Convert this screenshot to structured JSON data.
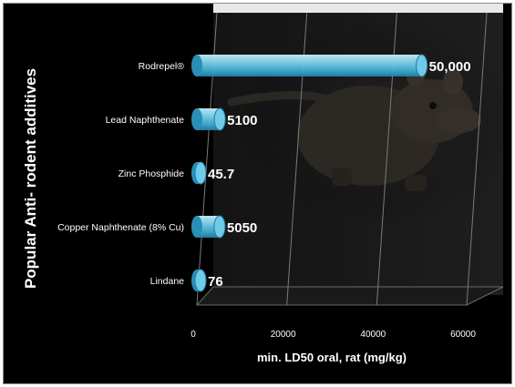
{
  "chart_data": {
    "type": "bar",
    "orientation": "horizontal",
    "categories": [
      "Rodrepel®",
      "Lead Naphthenate",
      "Zinc Phosphide",
      "Copper Naphthenate (8% Cu)",
      "Lindane"
    ],
    "values": [
      50000,
      5100,
      45.7,
      5050,
      76
    ],
    "value_labels": [
      "50,000",
      "5100",
      "45.7",
      "5050",
      "76"
    ],
    "xlabel": "min. LD50 oral, rat (mg/kg)",
    "ylabel": "Popular Anti- rodent additives",
    "xlim": [
      0,
      60000
    ],
    "xticks": [
      0,
      20000,
      40000,
      60000
    ],
    "xtick_labels": [
      "0",
      "20000",
      "40000",
      "60000"
    ],
    "grid": "vertical",
    "bar_color": "#5fc4e4",
    "background_color": "#000000",
    "background_image": "rat"
  }
}
